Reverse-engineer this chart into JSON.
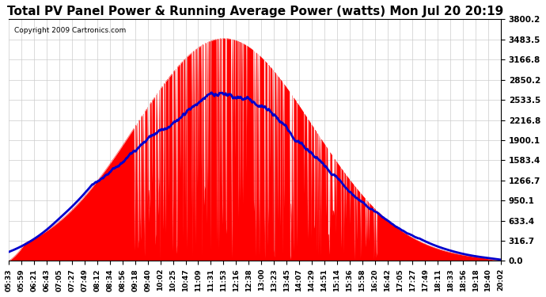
{
  "title": "Total PV Panel Power & Running Average Power (watts) Mon Jul 20 20:19",
  "copyright": "Copyright 2009 Cartronics.com",
  "background_color": "#ffffff",
  "plot_bg_color": "#ffffff",
  "yticks": [
    0.0,
    316.7,
    633.4,
    950.1,
    1266.7,
    1583.4,
    1900.1,
    2216.8,
    2533.5,
    2850.2,
    3166.8,
    3483.5,
    3800.2
  ],
  "ymax": 3800.2,
  "ymin": 0.0,
  "bar_color": "#ff0000",
  "avg_color": "#0000cc",
  "grid_color": "#cccccc",
  "x_labels": [
    "05:33",
    "05:59",
    "06:21",
    "06:43",
    "07:05",
    "07:27",
    "07:49",
    "08:12",
    "08:34",
    "08:56",
    "09:18",
    "09:40",
    "10:02",
    "10:25",
    "10:47",
    "11:09",
    "11:31",
    "11:53",
    "12:16",
    "12:38",
    "13:00",
    "13:23",
    "13:45",
    "14:07",
    "14:29",
    "14:51",
    "15:14",
    "15:36",
    "15:58",
    "16:20",
    "16:42",
    "17:05",
    "17:27",
    "17:49",
    "18:11",
    "18:33",
    "18:56",
    "19:18",
    "19:40",
    "20:02"
  ]
}
